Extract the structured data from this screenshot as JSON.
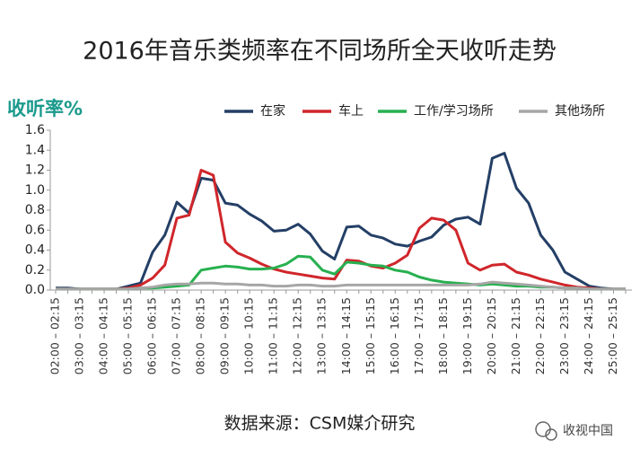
{
  "chart_data": {
    "type": "line",
    "title": "2016年音乐类频率在不同场所全天收听走势",
    "y_label": "收听率%",
    "source": "数据来源：CSM媒介研究",
    "watermark": "收视中国",
    "categories": [
      "02:00 – 02:15",
      null,
      "03:00 – 03:15",
      null,
      "04:00 – 04:15",
      null,
      "05:00 – 05:15",
      null,
      "06:00 – 06:15",
      null,
      "07:00 – 07:15",
      null,
      "08:00 – 08:15",
      null,
      "09:00 – 09:15",
      null,
      "10:00 – 10:15",
      null,
      "11:00 – 11:15",
      null,
      "12:00 – 12:15",
      null,
      "13:00 – 13:15",
      null,
      "14:00 – 14:15",
      null,
      "15:00 – 15:15",
      null,
      "16:00 – 16:15",
      null,
      "17:00 – 17:15",
      null,
      "18:00 – 18:15",
      null,
      "19:00 – 19:15",
      null,
      "20:00 – 20:15",
      null,
      "21:00 – 21:15",
      null,
      "22:00 – 22:15",
      null,
      "23:00 – 23:15",
      null,
      "24:00 – 24:15",
      null,
      "25:00 – 25:15",
      null
    ],
    "series": [
      {
        "name": "在家",
        "color": "#243f66",
        "values": [
          0.02,
          0.02,
          0.01,
          0.01,
          0.01,
          0.01,
          0.04,
          0.07,
          0.38,
          0.55,
          0.88,
          0.77,
          1.12,
          1.1,
          0.87,
          0.85,
          0.76,
          0.69,
          0.59,
          0.6,
          0.66,
          0.56,
          0.39,
          0.31,
          0.63,
          0.64,
          0.55,
          0.52,
          0.46,
          0.44,
          0.49,
          0.53,
          0.65,
          0.71,
          0.73,
          0.66,
          1.32,
          1.37,
          1.02,
          0.87,
          0.55,
          0.4,
          0.18,
          0.11,
          0.04,
          0.02,
          0.01,
          0.01
        ]
      },
      {
        "name": "车上",
        "color": "#d0262b",
        "values": [
          0.01,
          0.01,
          0.01,
          0.01,
          0.01,
          0.01,
          0.02,
          0.05,
          0.12,
          0.25,
          0.72,
          0.75,
          1.2,
          1.15,
          0.48,
          0.37,
          0.32,
          0.26,
          0.21,
          0.18,
          0.16,
          0.14,
          0.12,
          0.11,
          0.3,
          0.29,
          0.24,
          0.22,
          0.27,
          0.35,
          0.62,
          0.72,
          0.7,
          0.6,
          0.27,
          0.2,
          0.25,
          0.26,
          0.18,
          0.15,
          0.11,
          0.08,
          0.05,
          0.03,
          0.02,
          0.01,
          0.01,
          0.01
        ]
      },
      {
        "name": "工作/学习场所",
        "color": "#27b050",
        "values": [
          0.01,
          0.01,
          0.01,
          0.01,
          0.01,
          0.01,
          0.01,
          0.02,
          0.02,
          0.03,
          0.04,
          0.05,
          0.2,
          0.22,
          0.24,
          0.23,
          0.21,
          0.21,
          0.22,
          0.26,
          0.34,
          0.33,
          0.2,
          0.16,
          0.28,
          0.27,
          0.25,
          0.24,
          0.2,
          0.18,
          0.13,
          0.1,
          0.08,
          0.07,
          0.06,
          0.05,
          0.06,
          0.05,
          0.04,
          0.04,
          0.03,
          0.03,
          0.02,
          0.02,
          0.01,
          0.01,
          0.01,
          0.01
        ]
      },
      {
        "name": "其他场所",
        "color": "#a6a6a6",
        "values": [
          0.01,
          0.01,
          0.01,
          0.01,
          0.01,
          0.01,
          0.01,
          0.02,
          0.03,
          0.05,
          0.06,
          0.06,
          0.07,
          0.07,
          0.06,
          0.06,
          0.05,
          0.05,
          0.04,
          0.04,
          0.05,
          0.05,
          0.04,
          0.04,
          0.05,
          0.05,
          0.05,
          0.05,
          0.05,
          0.05,
          0.05,
          0.05,
          0.05,
          0.05,
          0.05,
          0.06,
          0.08,
          0.07,
          0.06,
          0.05,
          0.04,
          0.03,
          0.02,
          0.02,
          0.01,
          0.01,
          0.01,
          0.01
        ]
      }
    ],
    "ylim": [
      0,
      1.6
    ],
    "yticks": [
      {
        "value": 0,
        "label": "0.0"
      },
      0.2,
      0.4,
      0.6,
      0.8,
      {
        "value": 1,
        "label": "1.0"
      },
      1.2,
      1.4,
      1.6
    ],
    "grid": false
  }
}
